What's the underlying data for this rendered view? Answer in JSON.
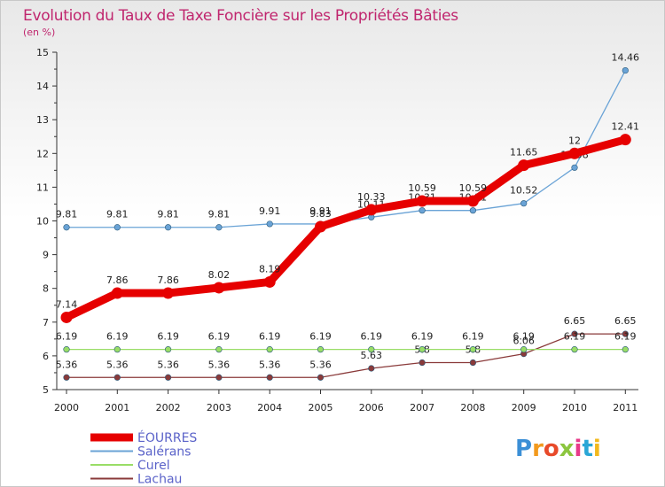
{
  "chart_data": {
    "type": "line",
    "title": "Evolution du Taux de Taxe Foncière sur les Propriétés Bâties",
    "subtitle": "(en %)",
    "x": [
      "2000",
      "2001",
      "2002",
      "2003",
      "2004",
      "2005",
      "2006",
      "2007",
      "2008",
      "2009",
      "2010",
      "2011"
    ],
    "ylim": [
      5,
      15
    ],
    "yticks": [
      "5",
      "6",
      "7",
      "8",
      "9",
      "10",
      "11",
      "12",
      "13",
      "14",
      "15"
    ],
    "grid": false,
    "legend_position": "bottom-left",
    "series": [
      {
        "name": "ÉOURRES",
        "color": "#e60000",
        "values": [
          7.14,
          7.86,
          7.86,
          8.02,
          8.19,
          9.83,
          10.33,
          10.59,
          10.59,
          11.65,
          12,
          12.41
        ],
        "labels": [
          "7.14",
          "7.86",
          "7.86",
          "8.02",
          "8.19",
          "9.83",
          "10.33",
          "10.59",
          "10.59",
          "11.65",
          "12",
          "12.41"
        ]
      },
      {
        "name": "Salérans",
        "color": "#6aa3d6",
        "values": [
          9.81,
          9.81,
          9.81,
          9.81,
          9.91,
          9.91,
          10.11,
          10.31,
          10.31,
          10.52,
          11.58,
          14.46
        ],
        "labels": [
          "9.81",
          "9.81",
          "9.81",
          "9.81",
          "9.91",
          "9.91",
          "10.11",
          "10.31",
          "10.31",
          "10.52",
          "11.58",
          "14.46"
        ]
      },
      {
        "name": "Curel",
        "color": "#99dd66",
        "values": [
          6.19,
          6.19,
          6.19,
          6.19,
          6.19,
          6.19,
          6.19,
          6.19,
          6.19,
          6.19,
          6.19,
          6.19
        ],
        "labels": [
          "6.19",
          "6.19",
          "6.19",
          "6.19",
          "6.19",
          "6.19",
          "6.19",
          "6.19",
          "6.19",
          "6.19",
          "6.19",
          "6.19"
        ]
      },
      {
        "name": "Lachau",
        "color": "#8a3a3a",
        "values": [
          5.36,
          5.36,
          5.36,
          5.36,
          5.36,
          5.36,
          5.63,
          5.8,
          5.8,
          6.06,
          6.65,
          6.65
        ],
        "labels": [
          "5.36",
          "5.36",
          "5.36",
          "5.36",
          "5.36",
          "5.36",
          "5.63",
          "5.8",
          "5.8",
          "6.06",
          "6.65",
          "6.65"
        ]
      }
    ]
  },
  "logo": {
    "text": "Proxiti"
  },
  "colors": {
    "title": "#c0266e",
    "legend_text": "#5b63c9",
    "axis": "#333333"
  }
}
